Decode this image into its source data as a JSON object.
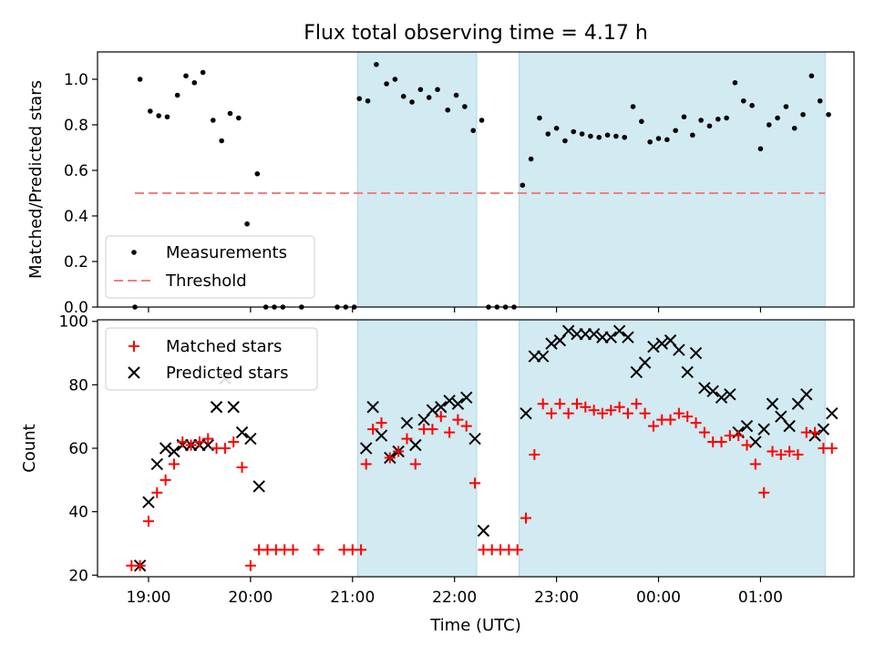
{
  "chart_data": [
    {
      "type": "scatter",
      "title": "Flux total observing time = 4.17 h",
      "ylabel": "Matched/Predicted stars",
      "xlabel": "",
      "ylim": [
        0,
        1.12
      ],
      "yticks": [
        "0.0",
        "0.2",
        "0.4",
        "0.6",
        "0.8",
        "1.0"
      ],
      "grid": false,
      "legend_position": "lower-left",
      "shaded_intervals": [
        [
          "21:03",
          "22:13"
        ],
        [
          "22:38",
          "01:38"
        ]
      ],
      "shade_color": "#add8e6",
      "threshold": {
        "name": "Threshold",
        "value": 0.5,
        "x_start": "18:52",
        "x_end": "01:38",
        "color": "#f08080",
        "style": "dashed"
      },
      "series": [
        {
          "name": "Measurements",
          "color": "#000000",
          "marker": "dot",
          "points": [
            [
              "18:52",
              0.0
            ],
            [
              "18:55",
              1.0
            ],
            [
              "19:01",
              0.86
            ],
            [
              "19:06",
              0.84
            ],
            [
              "19:11",
              0.835
            ],
            [
              "19:17",
              0.93
            ],
            [
              "19:22",
              1.015
            ],
            [
              "19:27",
              0.985
            ],
            [
              "19:32",
              1.03
            ],
            [
              "19:38",
              0.82
            ],
            [
              "19:43",
              0.73
            ],
            [
              "19:48",
              0.85
            ],
            [
              "19:53",
              0.83
            ],
            [
              "19:58",
              0.365
            ],
            [
              "20:04",
              0.585
            ],
            [
              "20:09",
              0.0
            ],
            [
              "20:14",
              0.0
            ],
            [
              "20:19",
              0.0
            ],
            [
              "20:30",
              0.0
            ],
            [
              "20:51",
              0.0
            ],
            [
              "20:56",
              0.0
            ],
            [
              "21:01",
              0.0
            ],
            [
              "21:04",
              0.915
            ],
            [
              "21:09",
              0.905
            ],
            [
              "21:14",
              1.065
            ],
            [
              "21:20",
              0.98
            ],
            [
              "21:25",
              1.0
            ],
            [
              "21:30",
              0.925
            ],
            [
              "21:35",
              0.9
            ],
            [
              "21:40",
              0.955
            ],
            [
              "21:45",
              0.92
            ],
            [
              "21:50",
              0.955
            ],
            [
              "21:56",
              0.865
            ],
            [
              "22:01",
              0.93
            ],
            [
              "22:06",
              0.88
            ],
            [
              "22:11",
              0.775
            ],
            [
              "22:16",
              0.82
            ],
            [
              "22:20",
              0.0
            ],
            [
              "22:25",
              0.0
            ],
            [
              "22:30",
              0.0
            ],
            [
              "22:35",
              0.0
            ],
            [
              "22:40",
              0.535
            ],
            [
              "22:45",
              0.65
            ],
            [
              "22:50",
              0.83
            ],
            [
              "22:55",
              0.76
            ],
            [
              "23:00",
              0.785
            ],
            [
              "23:05",
              0.73
            ],
            [
              "23:10",
              0.77
            ],
            [
              "23:15",
              0.76
            ],
            [
              "23:20",
              0.75
            ],
            [
              "23:25",
              0.745
            ],
            [
              "23:30",
              0.755
            ],
            [
              "23:35",
              0.75
            ],
            [
              "23:40",
              0.745
            ],
            [
              "23:45",
              0.88
            ],
            [
              "23:50",
              0.815
            ],
            [
              "23:55",
              0.725
            ],
            [
              "00:00",
              0.74
            ],
            [
              "00:05",
              0.735
            ],
            [
              "00:10",
              0.775
            ],
            [
              "00:15",
              0.835
            ],
            [
              "00:20",
              0.755
            ],
            [
              "00:25",
              0.82
            ],
            [
              "00:30",
              0.795
            ],
            [
              "00:35",
              0.825
            ],
            [
              "00:40",
              0.83
            ],
            [
              "00:45",
              0.985
            ],
            [
              "00:50",
              0.905
            ],
            [
              "00:55",
              0.885
            ],
            [
              "01:00",
              0.695
            ],
            [
              "01:05",
              0.8
            ],
            [
              "01:10",
              0.83
            ],
            [
              "01:15",
              0.88
            ],
            [
              "01:20",
              0.785
            ],
            [
              "01:25",
              0.845
            ],
            [
              "01:30",
              1.015
            ],
            [
              "01:35",
              0.905
            ],
            [
              "01:40",
              0.845
            ]
          ]
        }
      ]
    },
    {
      "type": "scatter",
      "title": "",
      "xlabel": "Time (UTC)",
      "ylabel": "Count",
      "ylim": [
        19.5,
        100.5
      ],
      "yticks": [
        "20",
        "40",
        "60",
        "80",
        "100"
      ],
      "xticks": [
        "19:00",
        "20:00",
        "21:00",
        "22:00",
        "23:00",
        "00:00",
        "01:00"
      ],
      "grid": false,
      "legend_position": "upper-left",
      "shaded_intervals": [
        [
          "21:03",
          "22:13"
        ],
        [
          "22:38",
          "01:38"
        ]
      ],
      "shade_color": "#add8e6",
      "series": [
        {
          "name": "Matched stars",
          "color": "#ff0000",
          "marker": "plus",
          "points": [
            [
              "18:50",
              23
            ],
            [
              "18:55",
              23
            ],
            [
              "19:00",
              37
            ],
            [
              "19:05",
              46
            ],
            [
              "19:10",
              50
            ],
            [
              "19:15",
              55
            ],
            [
              "19:20",
              62
            ],
            [
              "19:25",
              61
            ],
            [
              "19:30",
              62
            ],
            [
              "19:35",
              63
            ],
            [
              "19:40",
              60
            ],
            [
              "19:45",
              60
            ],
            [
              "19:50",
              62
            ],
            [
              "19:55",
              54
            ],
            [
              "20:00",
              23
            ],
            [
              "20:05",
              28
            ],
            [
              "20:10",
              28
            ],
            [
              "20:15",
              28
            ],
            [
              "20:20",
              28
            ],
            [
              "20:25",
              28
            ],
            [
              "20:40",
              28
            ],
            [
              "20:55",
              28
            ],
            [
              "21:00",
              28
            ],
            [
              "21:05",
              28
            ],
            [
              "21:08",
              55
            ],
            [
              "21:12",
              66
            ],
            [
              "21:17",
              68
            ],
            [
              "21:22",
              57
            ],
            [
              "21:27",
              59
            ],
            [
              "21:32",
              63
            ],
            [
              "21:37",
              55
            ],
            [
              "21:42",
              66
            ],
            [
              "21:47",
              66
            ],
            [
              "21:52",
              70
            ],
            [
              "21:57",
              65
            ],
            [
              "22:02",
              69
            ],
            [
              "22:07",
              67
            ],
            [
              "22:12",
              49
            ],
            [
              "22:17",
              28
            ],
            [
              "22:22",
              28
            ],
            [
              "22:27",
              28
            ],
            [
              "22:32",
              28
            ],
            [
              "22:37",
              28
            ],
            [
              "22:42",
              38
            ],
            [
              "22:47",
              58
            ],
            [
              "22:52",
              74
            ],
            [
              "22:57",
              71
            ],
            [
              "23:02",
              74
            ],
            [
              "23:07",
              71
            ],
            [
              "23:12",
              74
            ],
            [
              "23:17",
              73
            ],
            [
              "23:22",
              72
            ],
            [
              "23:27",
              71
            ],
            [
              "23:32",
              72
            ],
            [
              "23:37",
              73
            ],
            [
              "23:42",
              71
            ],
            [
              "23:47",
              74
            ],
            [
              "23:52",
              71
            ],
            [
              "23:57",
              67
            ],
            [
              "00:02",
              69
            ],
            [
              "00:07",
              69
            ],
            [
              "00:12",
              71
            ],
            [
              "00:17",
              70
            ],
            [
              "00:22",
              68
            ],
            [
              "00:27",
              65
            ],
            [
              "00:32",
              62
            ],
            [
              "00:37",
              62
            ],
            [
              "00:42",
              64
            ],
            [
              "00:47",
              64
            ],
            [
              "00:52",
              61
            ],
            [
              "00:57",
              55
            ],
            [
              "01:02",
              46
            ],
            [
              "01:07",
              59
            ],
            [
              "01:12",
              58
            ],
            [
              "01:17",
              59
            ],
            [
              "01:22",
              58
            ],
            [
              "01:27",
              65
            ],
            [
              "01:32",
              65
            ],
            [
              "01:37",
              60
            ],
            [
              "01:42",
              60
            ]
          ]
        },
        {
          "name": "Predicted stars",
          "color": "#000000",
          "marker": "x",
          "points": [
            [
              "18:55",
              23
            ],
            [
              "19:00",
              43
            ],
            [
              "19:05",
              55
            ],
            [
              "19:10",
              60
            ],
            [
              "19:15",
              59
            ],
            [
              "19:20",
              61
            ],
            [
              "19:25",
              61
            ],
            [
              "19:30",
              61
            ],
            [
              "19:35",
              61
            ],
            [
              "19:40",
              73
            ],
            [
              "19:45",
              82
            ],
            [
              "19:50",
              73
            ],
            [
              "19:55",
              65
            ],
            [
              "20:00",
              63
            ],
            [
              "20:05",
              48
            ],
            [
              "21:08",
              60
            ],
            [
              "21:12",
              73
            ],
            [
              "21:17",
              64
            ],
            [
              "21:22",
              57
            ],
            [
              "21:27",
              59
            ],
            [
              "21:32",
              68
            ],
            [
              "21:37",
              61
            ],
            [
              "21:42",
              69
            ],
            [
              "21:47",
              72
            ],
            [
              "21:52",
              73
            ],
            [
              "21:57",
              75
            ],
            [
              "22:02",
              74
            ],
            [
              "22:07",
              76
            ],
            [
              "22:12",
              63
            ],
            [
              "22:17",
              34
            ],
            [
              "22:42",
              71
            ],
            [
              "22:47",
              89
            ],
            [
              "22:52",
              89
            ],
            [
              "22:57",
              93
            ],
            [
              "23:02",
              94
            ],
            [
              "23:07",
              97
            ],
            [
              "23:12",
              96
            ],
            [
              "23:17",
              96
            ],
            [
              "23:22",
              96
            ],
            [
              "23:27",
              95
            ],
            [
              "23:32",
              95
            ],
            [
              "23:37",
              97
            ],
            [
              "23:42",
              95
            ],
            [
              "23:47",
              84
            ],
            [
              "23:52",
              87
            ],
            [
              "23:57",
              92
            ],
            [
              "00:02",
              93
            ],
            [
              "00:07",
              94
            ],
            [
              "00:12",
              91
            ],
            [
              "00:17",
              84
            ],
            [
              "00:22",
              90
            ],
            [
              "00:27",
              79
            ],
            [
              "00:32",
              78
            ],
            [
              "00:37",
              76
            ],
            [
              "00:42",
              77
            ],
            [
              "00:47",
              65
            ],
            [
              "00:52",
              67
            ],
            [
              "00:57",
              62
            ],
            [
              "01:02",
              66
            ],
            [
              "01:07",
              74
            ],
            [
              "01:12",
              70
            ],
            [
              "01:17",
              67
            ],
            [
              "01:22",
              74
            ],
            [
              "01:27",
              77
            ],
            [
              "01:32",
              64
            ],
            [
              "01:37",
              66
            ],
            [
              "01:42",
              71
            ]
          ]
        }
      ]
    }
  ]
}
